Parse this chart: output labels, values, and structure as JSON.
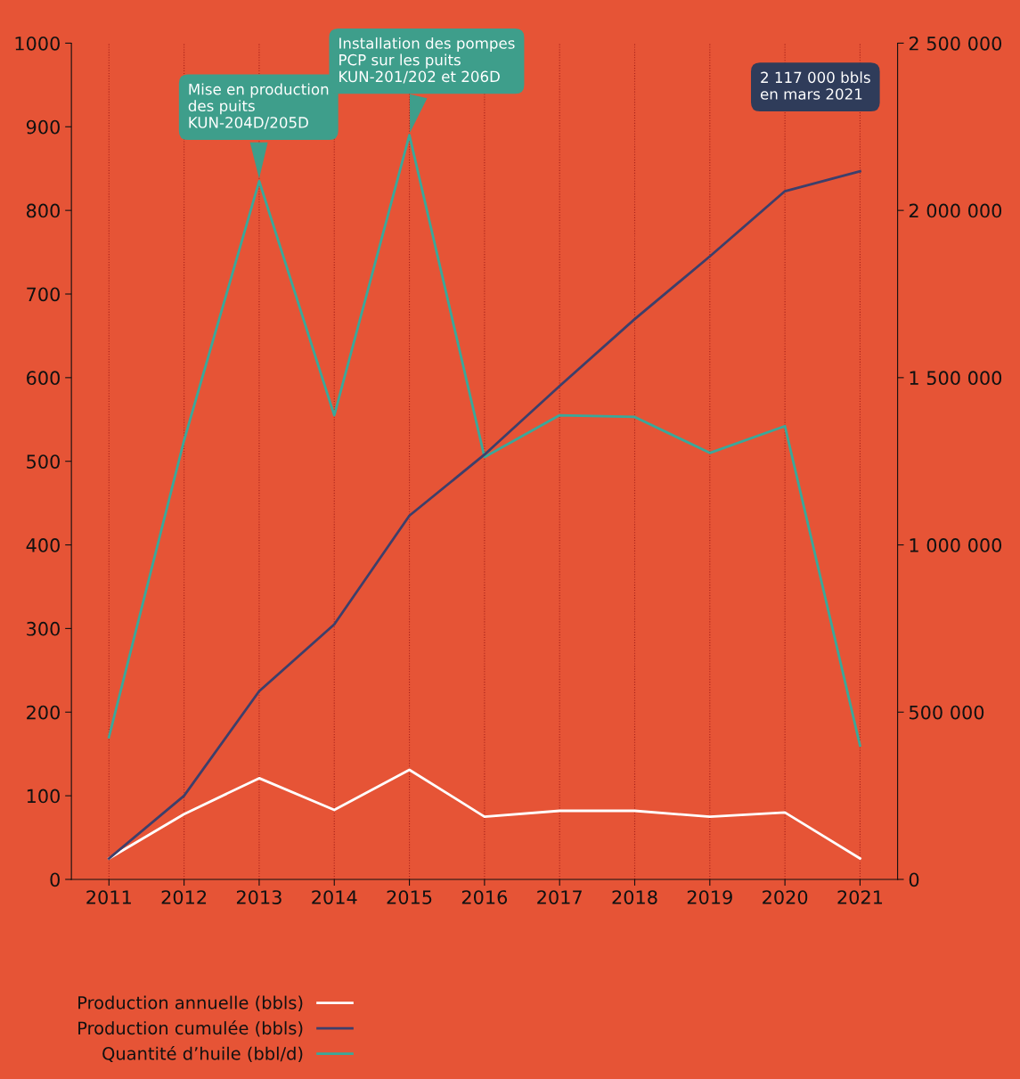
{
  "chart_data": {
    "type": "line",
    "categories": [
      "2011",
      "2012",
      "2013",
      "2014",
      "2015",
      "2016",
      "2017",
      "2018",
      "2019",
      "2020",
      "2021"
    ],
    "series": [
      {
        "name": "Production annuelle (bbls)",
        "color": "#ffffff",
        "axis": "y2",
        "values": [
          62500,
          195000,
          302500,
          207500,
          327500,
          187500,
          205000,
          205000,
          187500,
          200000,
          62500
        ]
      },
      {
        "name": "Production cumulée (bbls)",
        "color": "#3d3f6b",
        "axis": "y2",
        "values": [
          62500,
          250000,
          562500,
          762500,
          1087500,
          1270000,
          1475000,
          1675000,
          1862500,
          2057500,
          2117000
        ]
      },
      {
        "name": "Quantité d’huile (bbl/d)",
        "color": "#3aa89a",
        "values": [
          170,
          525,
          835,
          555,
          890,
          505,
          555,
          553,
          510,
          542,
          160
        ]
      }
    ],
    "ylim": [
      0,
      1000
    ],
    "yticks": [
      0,
      100,
      200,
      300,
      400,
      500,
      600,
      700,
      800,
      900,
      1000
    ],
    "y2lim": [
      0,
      2500000
    ],
    "y2ticks": [
      {
        "value": 0,
        "label": "0"
      },
      {
        "value": 500000,
        "label": "500 000"
      },
      {
        "value": 1000000,
        "label": "1 000 000"
      },
      {
        "value": 1500000,
        "label": "1 500 000"
      },
      {
        "value": 2000000,
        "label": "2 000 000"
      },
      {
        "value": 2500000,
        "label": "2 500 000"
      }
    ],
    "annotations": [
      {
        "text": "Mise en production\ndes puits\nKUN-204D/205D",
        "x": "2013",
        "y": 835
      },
      {
        "text": "Installation des pompes\nPCP sur les puits\nKUN-201/202 et 206D",
        "x": "2015",
        "y": 890
      },
      "2 117 000 bbls\nen mars 2021"
    ],
    "grid": "x",
    "legend": "bottom left",
    "marker": "none",
    "line_style": "solid"
  }
}
